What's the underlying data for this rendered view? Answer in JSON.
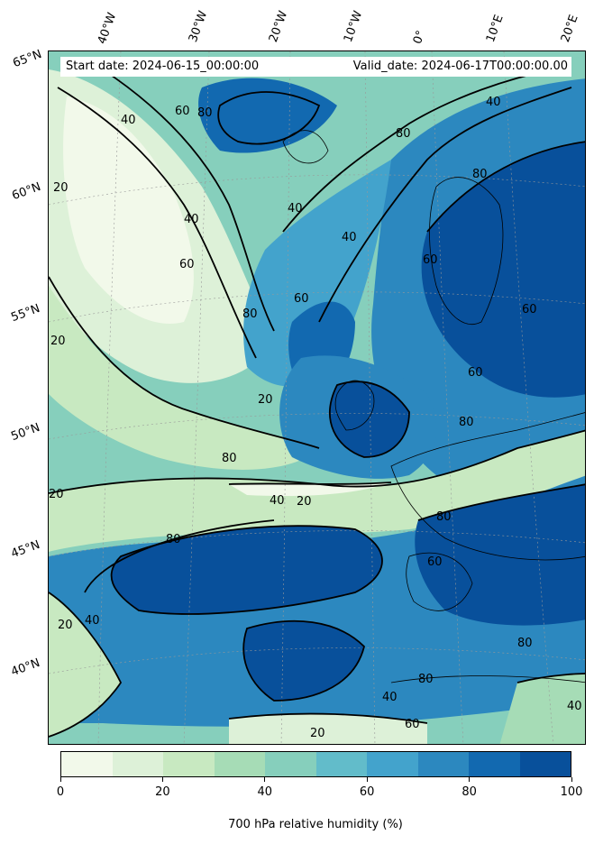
{
  "header": {
    "start_date": "Start date: 2024-06-15_00:00:00",
    "valid_date": "Valid_date: 2024-06-17T00:00:00.00"
  },
  "axes": {
    "lon_labels": [
      "40°W",
      "30°W",
      "20°W",
      "10°W",
      "0°",
      "10°E",
      "20°E"
    ],
    "lat_labels": [
      "65°N",
      "60°N",
      "55°N",
      "50°N",
      "45°N",
      "40°N"
    ]
  },
  "colorbar": {
    "label": "700 hPa relative humidity (%)",
    "ticks": [
      "0",
      "20",
      "40",
      "60",
      "80",
      "100"
    ],
    "levels": [
      0,
      10,
      20,
      30,
      40,
      50,
      60,
      70,
      80,
      90,
      100
    ],
    "colors": [
      "#f2f9ea",
      "#ddf1d8",
      "#c8e9c1",
      "#a6dcb6",
      "#86cfbc",
      "#62bcca",
      "#43a3cc",
      "#2c88bf",
      "#1269b0",
      "#08509b"
    ]
  },
  "contours": {
    "line_levels": [
      20,
      40,
      60,
      80
    ],
    "labels": [
      "40",
      "60",
      "80",
      "40",
      "20",
      "40",
      "60",
      "80",
      "40",
      "60",
      "80",
      "60",
      "20",
      "40",
      "80",
      "20",
      "80",
      "40",
      "20",
      "80",
      "60",
      "60",
      "80",
      "20",
      "40",
      "20",
      "80",
      "60",
      "40",
      "80",
      "20",
      "60",
      "80",
      "40"
    ]
  },
  "map": {
    "projection": "rotated pole / conic",
    "land_outline_color": "#000000",
    "gridline_color": "#999999"
  }
}
